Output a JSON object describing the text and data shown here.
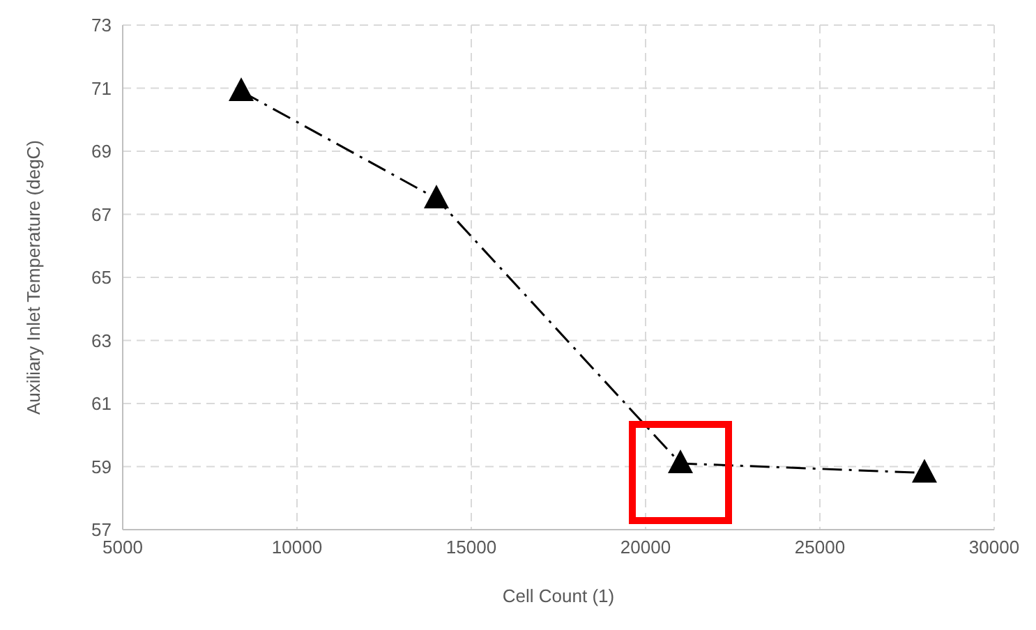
{
  "chart_data": {
    "type": "line",
    "xlabel": "Cell Count (1)",
    "ylabel": "Auxiliary Inlet Temperature (degC)",
    "x": [
      8400,
      14000,
      21000,
      28000
    ],
    "series": [
      {
        "color": "#000000",
        "values": [
          70.9,
          67.5,
          59.1,
          58.8
        ]
      }
    ],
    "xlim": [
      5000,
      30000
    ],
    "xticks": [
      5000,
      10000,
      15000,
      20000,
      25000,
      30000
    ],
    "ylim": [
      57,
      73
    ],
    "yticks": [
      57,
      59,
      61,
      63,
      65,
      67,
      69,
      71,
      73
    ],
    "grid": true,
    "marker": "triangle",
    "line_style": "dashed"
  }
}
